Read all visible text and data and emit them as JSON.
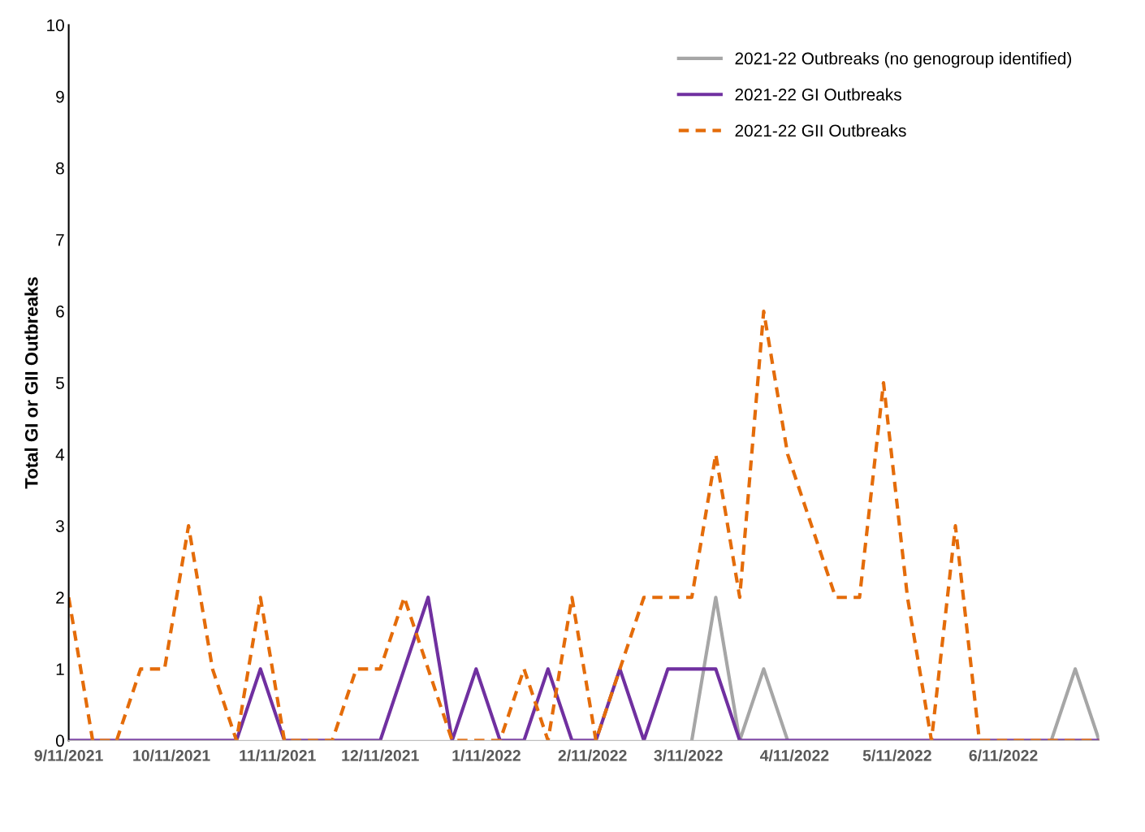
{
  "chart_data": {
    "type": "line",
    "ylabel": "Total GI or GII Outbreaks",
    "x": [
      "2021-09-11",
      "2021-09-18",
      "2021-09-25",
      "2021-10-02",
      "2021-10-09",
      "2021-10-16",
      "2021-10-23",
      "2021-10-30",
      "2021-11-06",
      "2021-11-13",
      "2021-11-20",
      "2021-11-27",
      "2021-12-04",
      "2021-12-11",
      "2021-12-18",
      "2021-12-25",
      "2022-01-01",
      "2022-01-08",
      "2022-01-15",
      "2022-01-22",
      "2022-01-29",
      "2022-02-05",
      "2022-02-12",
      "2022-02-19",
      "2022-02-26",
      "2022-03-05",
      "2022-03-12",
      "2022-03-19",
      "2022-03-26",
      "2022-04-02",
      "2022-04-09",
      "2022-04-16",
      "2022-04-23",
      "2022-04-30",
      "2022-05-07",
      "2022-05-14",
      "2022-05-21",
      "2022-05-28",
      "2022-06-04",
      "2022-06-11",
      "2022-06-18",
      "2022-06-25",
      "2022-07-02",
      "2022-07-09"
    ],
    "series": [
      {
        "name": "2021-22 Outbreaks (no genogroup identified)",
        "color": "#a6a6a6",
        "line_style": "solid",
        "values": [
          null,
          null,
          null,
          null,
          null,
          null,
          null,
          null,
          null,
          null,
          null,
          null,
          null,
          null,
          null,
          null,
          null,
          null,
          null,
          null,
          null,
          null,
          null,
          null,
          null,
          null,
          0,
          2,
          0,
          1,
          0,
          null,
          null,
          null,
          null,
          null,
          null,
          null,
          null,
          null,
          null,
          0,
          1,
          0
        ]
      },
      {
        "name": "2021-22 GI Outbreaks",
        "color": "#7030a0",
        "line_style": "solid",
        "values": [
          0,
          0,
          0,
          0,
          0,
          0,
          0,
          0,
          1,
          0,
          0,
          0,
          0,
          0,
          1,
          2,
          0,
          1,
          0,
          0,
          1,
          0,
          0,
          1,
          0,
          1,
          1,
          1,
          0,
          0,
          0,
          0,
          0,
          0,
          0,
          0,
          0,
          0,
          0,
          0,
          0,
          0,
          0,
          0
        ]
      },
      {
        "name": "2021-22 GII Outbreaks",
        "color": "#e46c0a",
        "line_style": "dashed",
        "values": [
          2,
          0,
          0,
          1,
          1,
          3,
          1,
          0,
          2,
          0,
          0,
          0,
          1,
          1,
          2,
          1,
          0,
          0,
          0,
          1,
          0,
          2,
          0,
          1,
          2,
          2,
          2,
          4,
          2,
          6,
          4,
          3,
          2,
          2,
          5,
          2,
          0,
          3,
          0,
          0,
          0,
          0,
          0,
          0
        ]
      }
    ],
    "xlim": [
      "2021-09-11",
      "2022-07-09"
    ],
    "xticks": [
      {
        "value": "2021-09-11",
        "label": "9/11/2021"
      },
      {
        "value": "2021-10-11",
        "label": "10/11/2021"
      },
      {
        "value": "2021-11-11",
        "label": "11/11/2021"
      },
      {
        "value": "2021-12-11",
        "label": "12/11/2021"
      },
      {
        "value": "2022-01-11",
        "label": "1/11/2022"
      },
      {
        "value": "2022-02-11",
        "label": "2/11/2022"
      },
      {
        "value": "2022-03-11",
        "label": "3/11/2022"
      },
      {
        "value": "2022-04-11",
        "label": "4/11/2022"
      },
      {
        "value": "2022-05-11",
        "label": "5/11/2022"
      },
      {
        "value": "2022-06-11",
        "label": "6/11/2022"
      }
    ],
    "ylim": [
      0,
      10
    ],
    "yticks": [
      0,
      1,
      2,
      3,
      4,
      5,
      6,
      7,
      8,
      9,
      10
    ],
    "grid": false,
    "legend": "top right",
    "marker": "none"
  }
}
